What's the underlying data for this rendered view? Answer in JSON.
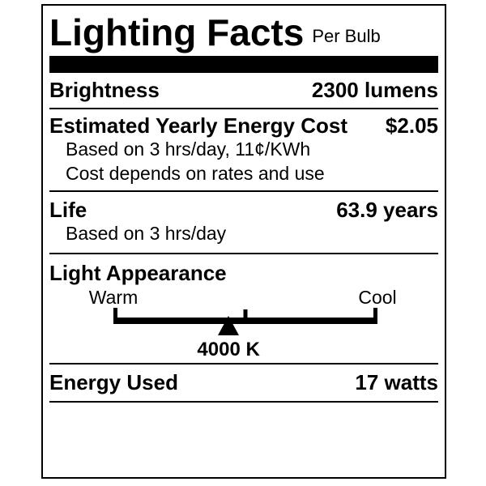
{
  "colors": {
    "ink": "#000000",
    "paper": "#ffffff"
  },
  "header": {
    "title": "Lighting Facts",
    "per_unit": "Per Bulb"
  },
  "rows": {
    "brightness": {
      "label": "Brightness",
      "value": "2300 lumens"
    },
    "energy_cost": {
      "label": "Estimated Yearly Energy Cost",
      "value": "$2.05",
      "note1": "Based on 3 hrs/day, 11¢/KWh",
      "note2": "Cost depends on rates and use"
    },
    "life": {
      "label": "Life",
      "value": "63.9 years",
      "note": "Based on 3 hrs/day"
    },
    "light_appearance": {
      "label": "Light Appearance",
      "warm": "Warm",
      "cool": "Cool",
      "kelvin": "4000 K",
      "marker_percent": 43.6
    },
    "energy_used": {
      "label": "Energy Used",
      "value": "17 watts"
    }
  }
}
